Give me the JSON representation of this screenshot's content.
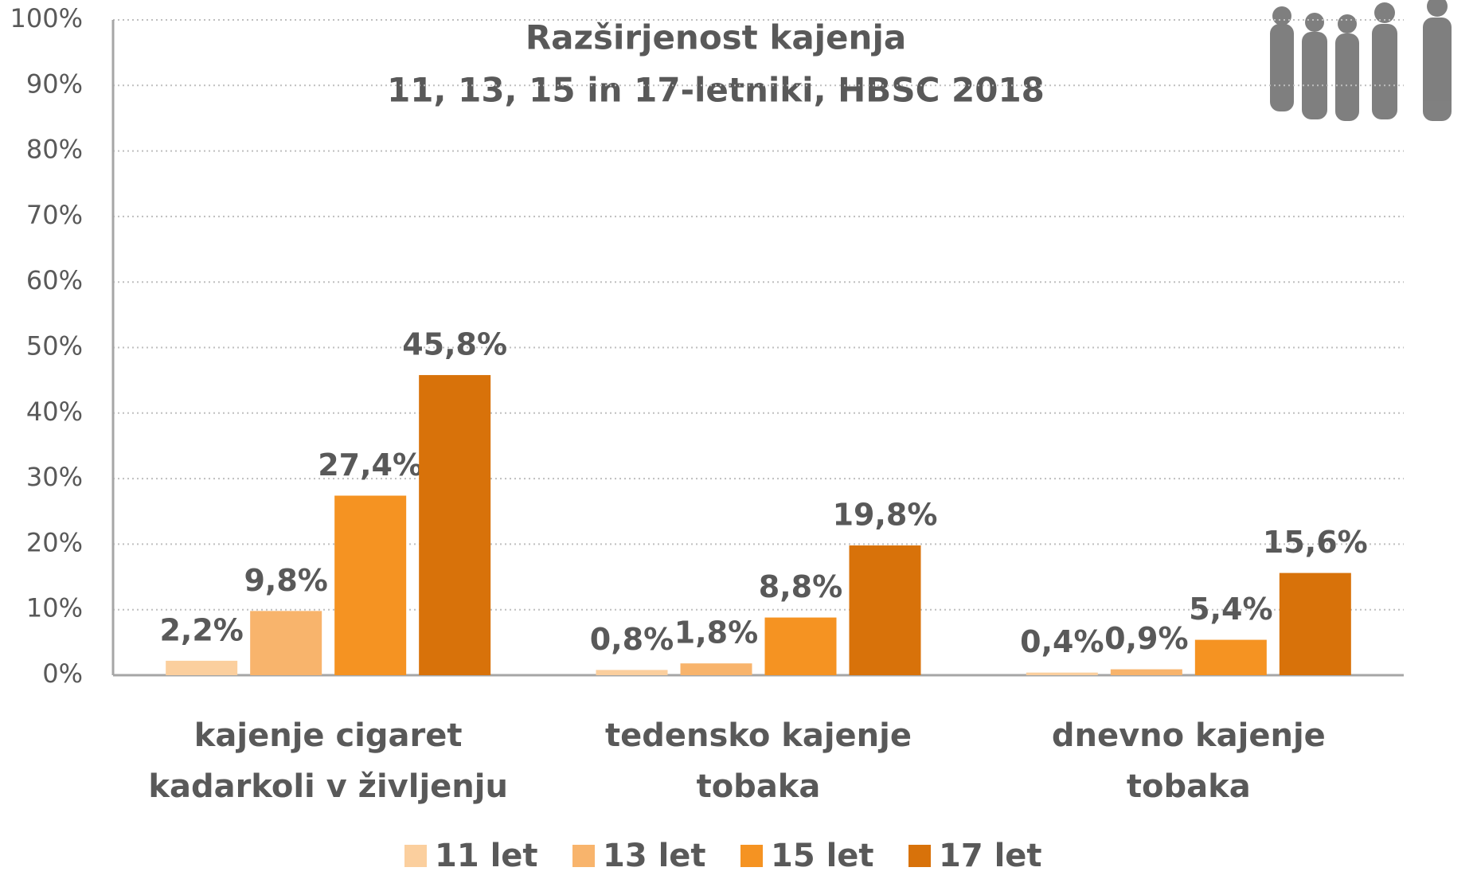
{
  "chart_data": {
    "type": "bar",
    "title": "Razširjenost kajenja",
    "subtitle": "11, 13, 15 in 17-letniki, HBSC 2018",
    "categories": [
      "kajenje cigaret kadarkoli v življenju",
      "tedensko kajenje tobaka",
      "dnevno kajenje tobaka"
    ],
    "series": [
      {
        "name": "11 let",
        "color": "#fbcf9e",
        "values": [
          2.2,
          0.8,
          0.4
        ],
        "value_labels": [
          "2,2%",
          "0,8%",
          "0,4%"
        ]
      },
      {
        "name": "13 let",
        "color": "#f8b46c",
        "values": [
          9.8,
          1.8,
          0.9
        ],
        "value_labels": [
          "9,8%",
          "1,8%",
          "0,9%"
        ]
      },
      {
        "name": "15 let",
        "color": "#f59322",
        "values": [
          27.4,
          8.8,
          5.4
        ],
        "value_labels": [
          "27,4%",
          "8,8%",
          "5,4%"
        ]
      },
      {
        "name": "17 let",
        "color": "#d8720a",
        "values": [
          45.8,
          19.8,
          15.6
        ],
        "value_labels": [
          "45,8%",
          "19,8%",
          "15,6%"
        ]
      }
    ],
    "ylim": [
      0,
      100
    ],
    "yticks": [
      {
        "value": 0,
        "label": "0%"
      },
      {
        "value": 10,
        "label": "10%"
      },
      {
        "value": 20,
        "label": "20%"
      },
      {
        "value": 30,
        "label": "30%"
      },
      {
        "value": 40,
        "label": "40%"
      },
      {
        "value": 50,
        "label": "50%"
      },
      {
        "value": 60,
        "label": "60%"
      },
      {
        "value": 70,
        "label": "70%"
      },
      {
        "value": 80,
        "label": "80%"
      },
      {
        "value": 90,
        "label": "90%"
      },
      {
        "value": 100,
        "label": "100%"
      }
    ],
    "grid": true
  }
}
